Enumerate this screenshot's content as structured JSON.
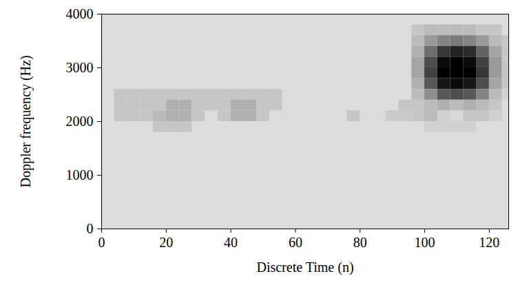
{
  "chart_data": {
    "type": "heatmap",
    "xlabel": "Discrete Time (n)",
    "ylabel": "Doppler frequency (Hz)",
    "xlim": [
      0,
      126
    ],
    "xticks": [
      0,
      20,
      40,
      60,
      80,
      100,
      120
    ],
    "ylim": [
      0,
      4000
    ],
    "yticks": [
      0,
      1000,
      2000,
      3000,
      4000
    ],
    "t_step": 4,
    "f_step": 200,
    "zlim": [
      0,
      1
    ],
    "cells": [
      [
        4,
        2400,
        0.1
      ],
      [
        8,
        2400,
        0.1
      ],
      [
        12,
        2400,
        0.1
      ],
      [
        16,
        2400,
        0.1
      ],
      [
        20,
        2400,
        0.1
      ],
      [
        24,
        2400,
        0.1
      ],
      [
        28,
        2400,
        0.1
      ],
      [
        32,
        2400,
        0.1
      ],
      [
        36,
        2400,
        0.1
      ],
      [
        40,
        2400,
        0.1
      ],
      [
        44,
        2400,
        0.1
      ],
      [
        48,
        2400,
        0.1
      ],
      [
        52,
        2400,
        0.1
      ],
      [
        4,
        2200,
        0.1
      ],
      [
        8,
        2200,
        0.1
      ],
      [
        12,
        2200,
        0.1
      ],
      [
        16,
        2200,
        0.1
      ],
      [
        20,
        2200,
        0.2
      ],
      [
        24,
        2200,
        0.2
      ],
      [
        28,
        2200,
        0.1
      ],
      [
        32,
        2200,
        0.1
      ],
      [
        36,
        2200,
        0.1
      ],
      [
        40,
        2200,
        0.2
      ],
      [
        44,
        2200,
        0.2
      ],
      [
        48,
        2200,
        0.1
      ],
      [
        52,
        2200,
        0.1
      ],
      [
        4,
        2000,
        0.1
      ],
      [
        8,
        2000,
        0.1
      ],
      [
        12,
        2000,
        0.1
      ],
      [
        16,
        2000,
        0.15
      ],
      [
        20,
        2000,
        0.2
      ],
      [
        24,
        2000,
        0.2
      ],
      [
        28,
        2000,
        0.1
      ],
      [
        36,
        2000,
        0.1
      ],
      [
        40,
        2000,
        0.2
      ],
      [
        44,
        2000,
        0.2
      ],
      [
        48,
        2000,
        0.1
      ],
      [
        16,
        1800,
        0.1
      ],
      [
        20,
        1800,
        0.1
      ],
      [
        24,
        1800,
        0.1
      ],
      [
        76,
        2000,
        0.1
      ],
      [
        88,
        2000,
        0.08
      ],
      [
        92,
        2000,
        0.08
      ],
      [
        92,
        2200,
        0.1
      ],
      [
        96,
        3600,
        0.1
      ],
      [
        100,
        3600,
        0.15
      ],
      [
        104,
        3600,
        0.15
      ],
      [
        108,
        3600,
        0.15
      ],
      [
        112,
        3600,
        0.15
      ],
      [
        116,
        3600,
        0.1
      ],
      [
        120,
        3600,
        0.1
      ],
      [
        96,
        3400,
        0.15
      ],
      [
        100,
        3400,
        0.3
      ],
      [
        104,
        3400,
        0.4
      ],
      [
        108,
        3400,
        0.45
      ],
      [
        112,
        3400,
        0.4
      ],
      [
        116,
        3400,
        0.3
      ],
      [
        120,
        3400,
        0.15
      ],
      [
        124,
        3400,
        0.1
      ],
      [
        96,
        3200,
        0.2
      ],
      [
        100,
        3200,
        0.5
      ],
      [
        104,
        3200,
        0.75
      ],
      [
        108,
        3200,
        0.85
      ],
      [
        112,
        3200,
        0.8
      ],
      [
        116,
        3200,
        0.55
      ],
      [
        120,
        3200,
        0.25
      ],
      [
        124,
        3200,
        0.1
      ],
      [
        96,
        3000,
        0.25
      ],
      [
        100,
        3000,
        0.65
      ],
      [
        104,
        3000,
        0.95
      ],
      [
        108,
        3000,
        1
      ],
      [
        112,
        3000,
        0.95
      ],
      [
        116,
        3000,
        0.7
      ],
      [
        120,
        3000,
        0.3
      ],
      [
        124,
        3000,
        0.1
      ],
      [
        96,
        2800,
        0.25
      ],
      [
        100,
        2800,
        0.7
      ],
      [
        104,
        2800,
        1
      ],
      [
        108,
        2800,
        1
      ],
      [
        112,
        2800,
        1
      ],
      [
        116,
        2800,
        0.75
      ],
      [
        120,
        2800,
        0.3
      ],
      [
        124,
        2800,
        0.1
      ],
      [
        96,
        2600,
        0.2
      ],
      [
        100,
        2600,
        0.6
      ],
      [
        104,
        2600,
        0.9
      ],
      [
        108,
        2600,
        0.95
      ],
      [
        112,
        2600,
        0.9
      ],
      [
        116,
        2600,
        0.65
      ],
      [
        120,
        2600,
        0.25
      ],
      [
        124,
        2600,
        0.1
      ],
      [
        96,
        2400,
        0.15
      ],
      [
        100,
        2400,
        0.35
      ],
      [
        104,
        2400,
        0.6
      ],
      [
        108,
        2400,
        0.65
      ],
      [
        112,
        2400,
        0.6
      ],
      [
        116,
        2400,
        0.4
      ],
      [
        120,
        2400,
        0.15
      ],
      [
        124,
        2400,
        0.05
      ],
      [
        96,
        2200,
        0.1
      ],
      [
        100,
        2200,
        0.15
      ],
      [
        104,
        2200,
        0.2
      ],
      [
        108,
        2200,
        0.15
      ],
      [
        112,
        2200,
        0.2
      ],
      [
        116,
        2200,
        0.15
      ],
      [
        120,
        2200,
        0.1
      ],
      [
        96,
        2000,
        0.1
      ],
      [
        100,
        2000,
        0.15
      ],
      [
        104,
        2000,
        0.05
      ],
      [
        108,
        2000,
        0.02
      ],
      [
        112,
        2000,
        0.1
      ],
      [
        116,
        2000,
        0.1
      ],
      [
        120,
        2000,
        0.05
      ],
      [
        100,
        1800,
        0.05
      ],
      [
        104,
        1800,
        0.05
      ],
      [
        108,
        1800,
        0.05
      ],
      [
        112,
        1800,
        0.05
      ]
    ]
  }
}
